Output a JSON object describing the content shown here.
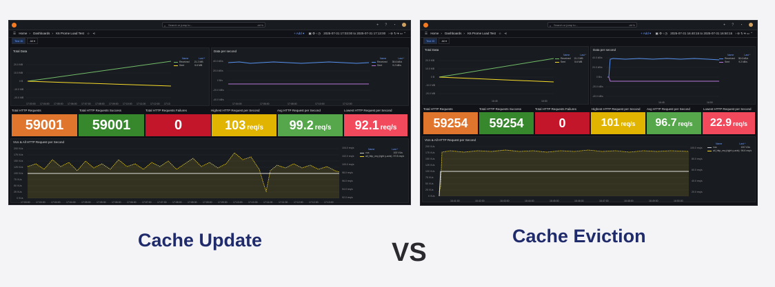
{
  "left": {
    "search_placeholder": "Search or jump to...",
    "search_kbd": "ctrl+k",
    "breadcrumb": [
      "Home",
      "Dashboards",
      "K6 Prome Load Test"
    ],
    "add_label": "Add",
    "time_range": "2025-07-31 17:03:00 to 2025-07-31 17:13:00",
    "var_label": "Test ID",
    "var_value": "All",
    "total_data": {
      "title": "Total Data",
      "y_ticks": [
        "20.0 MB",
        "10.0 MB",
        "0 B",
        "-10.0 MB",
        "-20.0 MB"
      ],
      "x_ticks": [
        "17:03:00",
        "17:04:00",
        "17:05:00",
        "17:06:00",
        "17:07:00",
        "17:08:00",
        "17:09:00",
        "17:10:00",
        "17:11:00",
        "17:12:00",
        "17:13"
      ],
      "legend_headers": [
        "Name",
        "Last *"
      ],
      "legend": [
        {
          "name": "Received",
          "value": "21.2 MB",
          "color": "#73bf69"
        },
        {
          "name": "Sent",
          "value": "5.6 MB",
          "color": "#fade2a"
        }
      ]
    },
    "data_per_second": {
      "title": "Data per second",
      "y_ticks": [
        "40.0 kB/s",
        "20.0 kB/s",
        "0 B/s",
        "-20.0 kB/s",
        "-40.0 kB/s"
      ],
      "x_ticks": [
        "17:04:00",
        "17:06:00",
        "17:08:00",
        "17:10:00",
        "17:12:00"
      ],
      "legend_headers": [
        "Name",
        "Last *"
      ],
      "legend": [
        {
          "name": "Received",
          "value": "35.6 kB/s",
          "color": "#5794f2"
        },
        {
          "name": "Sent",
          "value": "9.2 kB/s",
          "color": "#b877d9"
        }
      ]
    },
    "stats": [
      {
        "title": "Total HTTP Requests",
        "value": "59001",
        "unit": "",
        "color": "#e0752d"
      },
      {
        "title": "Total HTTP Requests Success",
        "value": "59001",
        "unit": "",
        "color": "#37872d"
      },
      {
        "title": "Total HTTP Requests Failures",
        "value": "0",
        "unit": "",
        "color": "#c4162a"
      },
      {
        "title": "Highest HTTP Request per Second",
        "value": "103",
        "unit": "req/s",
        "color": "#e0b400"
      },
      {
        "title": "Avg HTTP Request per Second",
        "value": "99.2",
        "unit": "req/s",
        "color": "#56a64b"
      },
      {
        "title": "Lowest HTTP Request per Second",
        "value": "92.1",
        "unit": "req/s",
        "color": "#f2495c"
      }
    ],
    "vus": {
      "title": "VUs & All HTTP Request per Second",
      "y_left": [
        "200 VUs",
        "175 VUs",
        "150 VUs",
        "125 VUs",
        "100 VUs",
        "75 VUs",
        "50 VUs",
        "25 VUs",
        "0 VUs"
      ],
      "y_right": [
        "104.0 req/s",
        "102.0 req/s",
        "100.0 req/s",
        "98.0 req/s",
        "96.0 req/s",
        "94.0 req/s",
        "92.0 req/s"
      ],
      "x_ticks": [
        "17:03:00",
        "17:03:30",
        "17:04:00",
        "17:04:30",
        "17:05:00",
        "17:05:30",
        "17:06:00",
        "17:06:30",
        "17:07:00",
        "17:07:30",
        "17:08:00",
        "17:08:30",
        "17:09:00",
        "17:09:30",
        "17:10:00",
        "17:10:30",
        "17:11:00",
        "17:11:30",
        "17:12:00",
        "17:12:30",
        "17:13:00"
      ],
      "legend_headers": [
        "Name",
        "Last *"
      ],
      "legend": [
        {
          "name": "vus",
          "value": "100 VUs",
          "color": "#cccccc"
        },
        {
          "name": "all_http_req (right y-axis)",
          "value": "97.8 req/s",
          "color": "#fade2a"
        }
      ]
    }
  },
  "right": {
    "search_placeholder": "Search or jump to...",
    "search_kbd": "ctrl+k",
    "breadcrumb": [
      "Home",
      "Dashboards",
      "K6 Prome Load Test"
    ],
    "add_label": "Add",
    "time_range": "2025-07-31 16:40:15 to 2025-07-31 16:50:15",
    "var_label": "Test ID",
    "var_value": "All",
    "total_data": {
      "title": "Total Data",
      "y_ticks": [
        "20.0 MB",
        "10.0 MB",
        "0 B",
        "-10.0 MB",
        "-20.0 MB"
      ],
      "x_ticks": [
        "16:45",
        "16:50"
      ],
      "legend_headers": [
        "Name",
        "Last *"
      ],
      "legend": [
        {
          "name": "Received",
          "value": "21.2 MB",
          "color": "#73bf69"
        },
        {
          "name": "Sent",
          "value": "5.6 MB",
          "color": "#fade2a"
        }
      ]
    },
    "data_per_second": {
      "title": "Data per second",
      "y_ticks": [
        "40.0 kB/s",
        "20.0 kB/s",
        "0 B/s",
        "-20.0 kB/s",
        "-40.0 kB/s"
      ],
      "x_ticks": [
        "16:45",
        "16:50"
      ],
      "legend_headers": [
        "Name",
        "Last *"
      ],
      "legend": [
        {
          "name": "Received",
          "value": "35.6 kB/s",
          "color": "#5794f2"
        },
        {
          "name": "Sent",
          "value": "9.2 kB/s",
          "color": "#b877d9"
        }
      ]
    },
    "stats": [
      {
        "title": "Total HTTP Requests",
        "value": "59254",
        "unit": "",
        "color": "#e0752d"
      },
      {
        "title": "Total HTTP Requests Success",
        "value": "59254",
        "unit": "",
        "color": "#37872d"
      },
      {
        "title": "Total HTTP Requests Failures",
        "value": "0",
        "unit": "",
        "color": "#c4162a"
      },
      {
        "title": "Highest HTTP Request per Second",
        "value": "101",
        "unit": "req/s",
        "color": "#e0b400"
      },
      {
        "title": "Avg HTTP Request per Second",
        "value": "96.7",
        "unit": "req/s",
        "color": "#56a64b"
      },
      {
        "title": "Lowest HTTP Request per Second",
        "value": "22.9",
        "unit": "req/s",
        "color": "#f2495c"
      }
    ],
    "vus": {
      "title": "VUs & All HTTP Request per Second",
      "y_left": [
        "200 VUs",
        "175 VUs",
        "150 VUs",
        "125 VUs",
        "100 VUs",
        "75 VUs",
        "50 VUs",
        "25 VUs",
        "0 VUs"
      ],
      "y_right": [
        "100.0 req/s",
        "80.0 req/s",
        "60.0 req/s",
        "40.0 req/s",
        "20.0 req/s"
      ],
      "x_ticks": [
        "16:41:00",
        "16:42:00",
        "16:43:00",
        "16:44:00",
        "16:45:00",
        "16:46:00",
        "16:47:00",
        "16:48:00",
        "16:49:00",
        "16:50:00"
      ],
      "legend_headers": [
        "Name",
        "Last *"
      ],
      "legend": [
        {
          "name": "vus",
          "value": "100 VUs",
          "color": "#cccccc"
        },
        {
          "name": "all_http_req (right y-axis)",
          "value": "96.6 req/s",
          "color": "#fade2a"
        }
      ]
    }
  },
  "labels": {
    "left": "Cache Update",
    "vs": "VS",
    "right": "Cache Eviction"
  }
}
